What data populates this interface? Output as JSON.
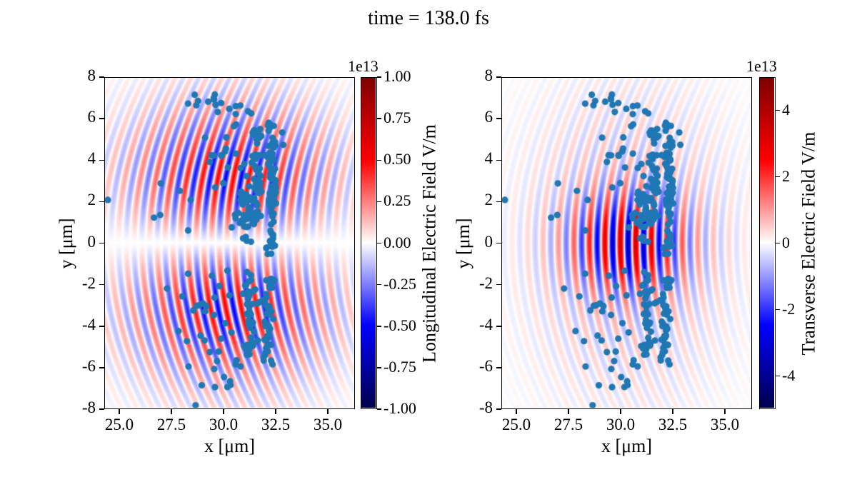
{
  "chart_data": {
    "type": "scatter",
    "title": "time = 138.0 fs",
    "time_fs": 138.0,
    "panels": [
      {
        "name": "longitudinal",
        "xlabel": "x [μm]",
        "ylabel": "y [μm]",
        "xlim": [
          24.28,
          36.3
        ],
        "ylim": [
          -8,
          8
        ],
        "xtick_values": [
          25.0,
          27.5,
          30.0,
          32.5,
          35.0
        ],
        "xtick_labels": [
          "25.0",
          "27.5",
          "30.0",
          "32.5",
          "35.0"
        ],
        "ytick_values": [
          8,
          6,
          4,
          2,
          0,
          -2,
          -4,
          -6,
          -8
        ],
        "ytick_labels": [
          "8",
          "6",
          "4",
          "2",
          "0",
          "-2",
          "-4",
          "-6",
          "-8"
        ],
        "colorbar": {
          "label": "Longitudinal Electric Field V/m",
          "exponent": "1e13",
          "vmin": -1.0,
          "vmax": 1.0,
          "tick_values": [
            1.0,
            0.75,
            0.5,
            0.25,
            0.0,
            -0.25,
            -0.5,
            -0.75,
            -1.0
          ],
          "tick_labels": [
            "1.00",
            "0.75",
            "0.50",
            "0.25",
            "0.00",
            "-0.25",
            "-0.50",
            "-0.75",
            "-1.00"
          ],
          "colormap": "seismic"
        },
        "field": {
          "component": "longitudinal",
          "amplitude": 0.5,
          "center_x": 30.3,
          "sigma_x": 3.4,
          "sigma_y": 3.2
        }
      },
      {
        "name": "transverse",
        "xlabel": "x [μm]",
        "ylabel": "y [μm]",
        "xlim": [
          24.28,
          36.3
        ],
        "ylim": [
          -8,
          8
        ],
        "xtick_values": [
          25.0,
          27.5,
          30.0,
          32.5,
          35.0
        ],
        "xtick_labels": [
          "25.0",
          "27.5",
          "30.0",
          "32.5",
          "35.0"
        ],
        "ytick_values": [
          8,
          6,
          4,
          2,
          0,
          -2,
          -4,
          -6,
          -8
        ],
        "ytick_labels": [
          "8",
          "6",
          "4",
          "2",
          "0",
          "-2",
          "-4",
          "-6",
          "-8"
        ],
        "colorbar": {
          "label": "Transverse Electric Field V/m",
          "exponent": "1e13",
          "vmin": -5.0,
          "vmax": 5.0,
          "tick_values": [
            4,
            2,
            0,
            -2,
            -4
          ],
          "tick_labels": [
            "4",
            "2",
            "0",
            "-2",
            "-4"
          ],
          "colormap": "seismic"
        },
        "field": {
          "component": "transverse",
          "core_amplitude": 0.5,
          "center_x": 30.4,
          "core_sigma_x": 1.9,
          "core_sigma_y": 1.55,
          "broad_amplitude": 0.18,
          "broad_sigma_x": 3.2,
          "broad_sigma_y": 5.0
        }
      }
    ],
    "laser": {
      "wavelength_um": 0.75,
      "wavefront_R": 16
    },
    "scatter": {
      "color": "#1f77b4",
      "radius_px": 4.6,
      "seed": 11,
      "clusters": [
        {
          "type": "streak",
          "n": 95,
          "x0": 32.38,
          "xs": 0.1,
          "y_min": -0.55,
          "y_max": 5.85,
          "y_ref": 2.6,
          "curve": -0.01,
          "wiggle": 0.07
        },
        {
          "type": "streak",
          "n": 55,
          "x0": 31.62,
          "xs": 0.13,
          "y_min": 0.85,
          "y_max": 5.6,
          "y_ref": 3.2,
          "curve": -0.012,
          "wiggle": 0.06
        },
        {
          "type": "blob",
          "n": 26,
          "cx": 31.02,
          "cy": 1.7,
          "sx": 0.22,
          "sy": 0.55
        },
        {
          "type": "blob",
          "n": 12,
          "cx": 30.8,
          "cy": 0.75,
          "sx": 0.28,
          "sy": 0.33
        },
        {
          "type": "spray",
          "n": 14,
          "x0": 29.3,
          "y0": 2.6,
          "w": 2.0,
          "h": 2.6
        },
        {
          "type": "blob",
          "n": 9,
          "cx": 29.4,
          "cy": 6.8,
          "sx": 0.55,
          "sy": 0.28
        },
        {
          "type": "blob",
          "n": 6,
          "cx": 30.82,
          "cy": 6.1,
          "sx": 0.25,
          "sy": 0.45
        },
        {
          "type": "streak",
          "n": 48,
          "x0": 32.1,
          "xs": 0.13,
          "y_min": -5.95,
          "y_max": -1.6,
          "y_ref": -3.9,
          "curve": 0.012,
          "wiggle": 0.07
        },
        {
          "type": "streak",
          "n": 40,
          "x0": 31.3,
          "xs": 0.16,
          "y_min": -5.5,
          "y_max": -1.3,
          "y_ref": -3.5,
          "curve": -0.01,
          "wiggle": 0.06
        },
        {
          "type": "spray",
          "n": 10,
          "x0": 27.8,
          "y0": -5.3,
          "w": 2.4,
          "h": 3.4
        },
        {
          "type": "blob",
          "n": 8,
          "cx": 30.1,
          "cy": -6.4,
          "sx": 0.5,
          "sy": 0.4
        }
      ],
      "points": [
        [
          24.42,
          2.08
        ],
        [
          26.65,
          1.22
        ],
        [
          26.95,
          1.35
        ],
        [
          26.98,
          2.88
        ],
        [
          27.9,
          2.52
        ],
        [
          28.42,
          2.08
        ],
        [
          28.3,
          0.6
        ],
        [
          29.12,
          5.1
        ],
        [
          29.35,
          3.92
        ],
        [
          28.62,
          7.18
        ],
        [
          28.78,
          6.88
        ],
        [
          29.55,
          6.95
        ],
        [
          29.9,
          6.78
        ],
        [
          32.85,
          5.35
        ],
        [
          32.9,
          4.75
        ],
        [
          27.28,
          -2.22
        ],
        [
          28.02,
          -2.6
        ],
        [
          28.55,
          -3.28
        ],
        [
          28.9,
          -4.5
        ],
        [
          29.35,
          -5.3
        ],
        [
          28.32,
          -6.0
        ],
        [
          29.6,
          -7.0
        ],
        [
          28.66,
          -7.88
        ],
        [
          30.35,
          -6.9
        ],
        [
          30.6,
          -5.9
        ],
        [
          28.3,
          -1.5
        ],
        [
          29.45,
          -1.6
        ],
        [
          30.2,
          -1.35
        ],
        [
          29.8,
          -2.1
        ],
        [
          30.3,
          -2.55
        ],
        [
          29.0,
          -2.95
        ],
        [
          29.55,
          -3.5
        ],
        [
          30.1,
          -3.9
        ],
        [
          29.9,
          -4.65
        ],
        [
          30.4,
          -4.35
        ]
      ]
    }
  }
}
